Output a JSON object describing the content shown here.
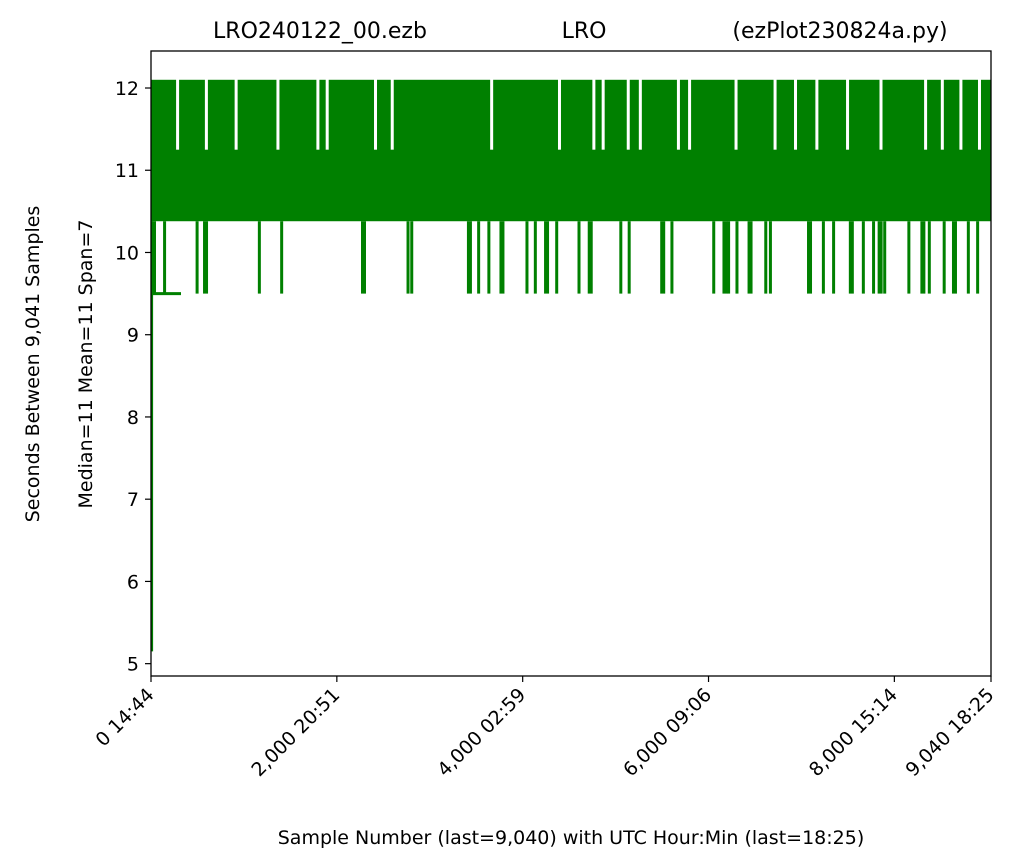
{
  "chart_data": {
    "type": "line",
    "title_left": "LRO240122_00.ezb",
    "title_center": "LRO",
    "title_right": "(ezPlot230824a.py)",
    "xlabel": "Sample Number (last=9,040) with UTC Hour:Min (last=18:25)",
    "ylabel_outer": "Seconds Between 9,041 Samples",
    "ylabel_inner": "Median=11  Mean=11  Span=7",
    "xlim": [
      0,
      9040
    ],
    "ylim": [
      4.85,
      12.45
    ],
    "y_ticks": [
      5,
      6,
      7,
      8,
      9,
      10,
      11,
      12
    ],
    "x_ticks": [
      {
        "x": 0,
        "label": "0  14:44"
      },
      {
        "x": 2000,
        "label": "2,000  20:51"
      },
      {
        "x": 4000,
        "label": "4,000  02:59"
      },
      {
        "x": 6000,
        "label": "6,000  09:06"
      },
      {
        "x": 8000,
        "label": "8,000  15:14"
      },
      {
        "x": 9040,
        "label": "9,040  18:25"
      }
    ],
    "series": [
      {
        "color": "#008000",
        "levels": [
          9.5,
          10.38,
          11.25,
          12.1
        ],
        "band_low": 10.38,
        "band_high": 12.1,
        "start_min": 5.15,
        "dip_9_5_x": [
          0,
          130,
          480,
          560,
          1150,
          1390,
          2260,
          2750,
          2790,
          3400,
          3510,
          3620,
          3750,
          4030,
          4120,
          4230,
          4350,
          4590,
          4700,
          5040,
          5130,
          5480,
          5590,
          6040,
          6150,
          6200,
          6290,
          6420,
          6600,
          6650,
          7060,
          7220,
          7330,
          7510,
          7650,
          7760,
          7820,
          7880,
          8140,
          8280,
          8360,
          8520,
          8620,
          8780,
          8880
        ],
        "gap_x": [
          270,
          580,
          900,
          1350,
          1780,
          1880,
          2400,
          2580,
          3650,
          4380,
          4750,
          4850,
          5120,
          5250,
          5660,
          5780,
          6280,
          6700,
          6920,
          7150,
          7480,
          7840,
          8320,
          8500,
          8700,
          8900
        ]
      }
    ]
  }
}
